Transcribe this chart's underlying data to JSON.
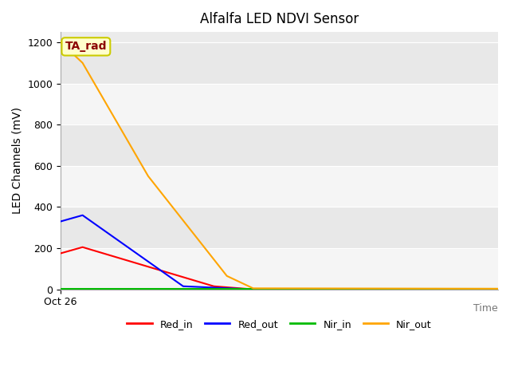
{
  "title": "Alfalfa LED NDVI Sensor",
  "xlabel": "Time",
  "ylabel": "LED Channels (mV)",
  "ylim": [
    0,
    1250
  ],
  "xlim": [
    0,
    100
  ],
  "plot_bg_color": "#ebebeb",
  "fig_bg_color": "#ffffff",
  "annotation_text": "TA_rad",
  "annotation_color": "#8b0000",
  "annotation_bg": "#ffffcc",
  "annotation_edge": "#cccc00",
  "series": {
    "Red_in": {
      "x": [
        0,
        5,
        35,
        44
      ],
      "y": [
        175,
        205,
        15,
        0
      ],
      "color": "red",
      "linewidth": 1.5
    },
    "Red_out": {
      "x": [
        0,
        5,
        28,
        44
      ],
      "y": [
        330,
        360,
        15,
        0
      ],
      "color": "blue",
      "linewidth": 1.5
    },
    "Nir_in": {
      "x": [
        0,
        100
      ],
      "y": [
        2,
        2
      ],
      "color": "#00bb00",
      "linewidth": 1.5
    },
    "Nir_out": {
      "x": [
        0,
        5,
        20,
        38,
        44,
        100
      ],
      "y": [
        1200,
        1100,
        550,
        65,
        5,
        3
      ],
      "color": "orange",
      "linewidth": 1.5
    }
  },
  "yticks": [
    0,
    200,
    400,
    600,
    800,
    1000,
    1200
  ],
  "ytick_labels": [
    "0",
    "200",
    "400",
    "600",
    "800",
    "1000",
    "1200"
  ],
  "xtick_pos": [
    0
  ],
  "xtick_label": "Oct 26",
  "grid_color": "#ffffff",
  "legend_order": [
    "Red_in",
    "Red_out",
    "Nir_in",
    "Nir_out"
  ],
  "legend_colors": {
    "Red_in": "red",
    "Red_out": "blue",
    "Nir_in": "#00bb00",
    "Nir_out": "orange"
  },
  "spine_color": "#aaaaaa"
}
